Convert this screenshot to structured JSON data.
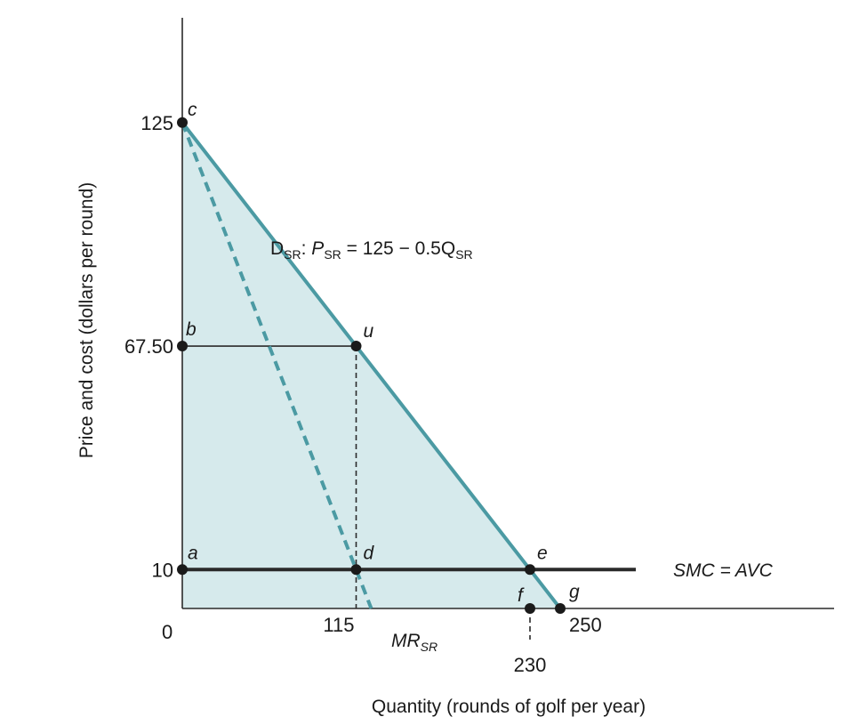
{
  "chart_data": {
    "type": "line",
    "xlabel": "Quantity (rounds of golf per year)",
    "ylabel": "Price and cost (dollars per round)",
    "xlim": [
      0,
      320
    ],
    "ylim": [
      0,
      150
    ],
    "origin_label": "0",
    "x_ticks": [
      {
        "value": 115,
        "label": "115"
      },
      {
        "value": 230,
        "label": "230"
      },
      {
        "value": 250,
        "label": "250"
      }
    ],
    "y_ticks": [
      {
        "value": 125,
        "label": "125"
      },
      {
        "value": 67.5,
        "label": "67.50"
      },
      {
        "value": 10,
        "label": "10"
      }
    ],
    "series": [
      {
        "key": "demand",
        "name": "D_SR: P_SR = 125 − 0.5Q_SR",
        "style": "solid",
        "color": "#4b9aa3",
        "x": [
          0,
          250
        ],
        "y": [
          125,
          0
        ]
      },
      {
        "key": "mr",
        "name": "MR_SR",
        "style": "dashed",
        "color": "#4b9aa3",
        "x": [
          0,
          125
        ],
        "y": [
          125,
          0
        ]
      },
      {
        "key": "smc",
        "name": "SMC = AVC",
        "style": "solid",
        "color": "#2a2a2a",
        "x": [
          0,
          300
        ],
        "y": [
          10,
          10
        ]
      }
    ],
    "shaded_region": {
      "color": "#d6eaec",
      "x": [
        0,
        0,
        230,
        250
      ],
      "y": [
        0,
        125,
        10,
        0
      ]
    },
    "points": [
      {
        "label": "c",
        "x": 0,
        "y": 125
      },
      {
        "label": "b",
        "x": 0,
        "y": 67.5
      },
      {
        "label": "u",
        "x": 115,
        "y": 67.5
      },
      {
        "label": "a",
        "x": 0,
        "y": 10
      },
      {
        "label": "d",
        "x": 115,
        "y": 10
      },
      {
        "label": "e",
        "x": 230,
        "y": 10
      },
      {
        "label": "f",
        "x": 230,
        "y": 0
      },
      {
        "label": "g",
        "x": 250,
        "y": 0
      }
    ],
    "guide_lines": [
      {
        "from": [
          0,
          67.5
        ],
        "to": [
          115,
          67.5
        ],
        "style": "solid"
      },
      {
        "from": [
          115,
          67.5
        ],
        "to": [
          115,
          0
        ],
        "style": "dashed"
      },
      {
        "from": [
          230,
          0
        ],
        "to": [
          230,
          -8
        ],
        "style": "dashed"
      }
    ],
    "annotations": {
      "demand_eq": {
        "D": "D",
        "D_sub": "SR",
        "sep": ": ",
        "P": "P",
        "P_sub": "SR",
        "rhs": " = 125 − 0.5Q",
        "Q_sub": "SR"
      },
      "mr_label": {
        "main": "MR",
        "sub": "SR"
      },
      "smc_label": "SMC = AVC"
    }
  }
}
